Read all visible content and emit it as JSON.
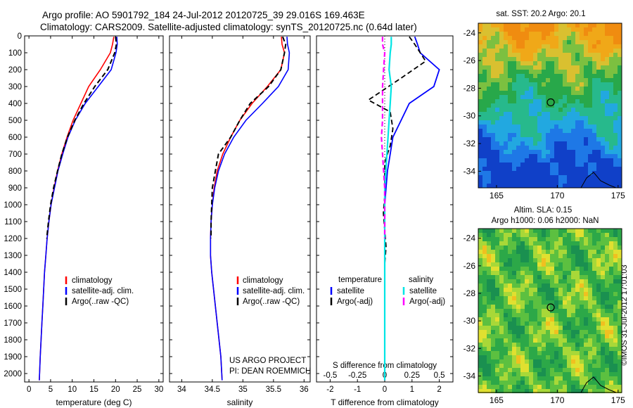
{
  "header": {
    "line1": "Argo profile: AO 5901792_184 24-Jul-2012 20120725_39 29.016S 169.463E",
    "line2": "Climatology: CARS2009. Satellite-adjusted climatology: synTS_20120725.nc (0.64d later)"
  },
  "colors": {
    "climatology": "#ff0000",
    "satellite": "#0000ff",
    "argo": "#000000",
    "salinity_satellite": "#00e5e5",
    "salinity_argo": "#ff00ff"
  },
  "chart_data": [
    {
      "type": "line",
      "id": "temperature",
      "xlabel": "temperature (deg C)",
      "xlim": [
        -1,
        31
      ],
      "ylim": [
        2050,
        0
      ],
      "xticks": [
        "0",
        "5",
        "10",
        "15",
        "20",
        "25",
        "30"
      ],
      "yticks": [
        "0",
        "100",
        "200",
        "300",
        "400",
        "500",
        "600",
        "700",
        "800",
        "900",
        "1000",
        "1100",
        "1200",
        "1300",
        "1400",
        "1500",
        "1600",
        "1700",
        "1800",
        "1900",
        "2000"
      ],
      "legend": [
        "climatology",
        "satellite-adj. clim.",
        "Argo(..raw -QC)"
      ],
      "series": [
        {
          "name": "climatology",
          "x": [
            19.6,
            19.3,
            18.8,
            16.5,
            13.8,
            12.0,
            10.2,
            8.8,
            7.6,
            6.6,
            5.8,
            5.1,
            4.6,
            4.2,
            3.9,
            3.6,
            3.4,
            3.2,
            3.0,
            2.8,
            2.6,
            2.4
          ],
          "y": [
            5,
            50,
            100,
            200,
            300,
            400,
            500,
            600,
            700,
            800,
            900,
            1000,
            1100,
            1200,
            1300,
            1400,
            1500,
            1600,
            1700,
            1800,
            1900,
            2040
          ]
        },
        {
          "name": "satellite-adj. clim.",
          "x": [
            20.3,
            20.4,
            20.1,
            19.0,
            16.0,
            13.0,
            10.7,
            9.0,
            7.8,
            6.7,
            5.9,
            5.1,
            4.6,
            4.2,
            3.9,
            3.6,
            3.4,
            3.2,
            3.0,
            2.8,
            2.6,
            2.4
          ],
          "y": [
            5,
            50,
            100,
            200,
            300,
            400,
            500,
            600,
            700,
            800,
            900,
            1000,
            1100,
            1200,
            1300,
            1400,
            1500,
            1600,
            1700,
            1800,
            1900,
            2040
          ]
        },
        {
          "name": "Argo(..raw -QC)",
          "x": [
            20.0,
            20.2,
            19.8,
            18.2,
            15.2,
            12.7,
            10.6,
            8.9,
            7.6,
            6.6,
            5.7,
            5.0,
            4.5,
            4.1
          ],
          "y": [
            5,
            50,
            100,
            200,
            300,
            400,
            500,
            600,
            700,
            800,
            900,
            1000,
            1100,
            1200
          ]
        }
      ]
    },
    {
      "type": "line",
      "id": "salinity",
      "xlabel": "salinity",
      "xlim": [
        33.8,
        36.1
      ],
      "ylim": [
        2050,
        0
      ],
      "xticks": [
        "34",
        "34.5",
        "35",
        "35.5",
        "36"
      ],
      "legend": [
        "climatology",
        "satellite-adj. clim.",
        "Argo(..raw -QC)"
      ],
      "credit": [
        "US ARGO PROJECT",
        "PI: DEAN ROEMMICH"
      ],
      "series": [
        {
          "name": "climatology",
          "x": [
            35.63,
            35.64,
            35.68,
            35.62,
            35.4,
            35.15,
            34.95,
            34.8,
            34.67,
            34.58,
            34.53,
            34.5,
            34.48,
            34.47,
            34.47,
            34.49,
            34.52,
            34.55,
            34.58,
            34.61,
            34.64,
            34.66
          ],
          "y": [
            5,
            50,
            100,
            200,
            300,
            400,
            500,
            600,
            700,
            800,
            900,
            1000,
            1100,
            1200,
            1300,
            1400,
            1500,
            1600,
            1700,
            1800,
            1900,
            2040
          ]
        },
        {
          "name": "satellite-adj. clim.",
          "x": [
            35.72,
            35.73,
            35.76,
            35.74,
            35.58,
            35.32,
            35.05,
            34.85,
            34.7,
            34.6,
            34.54,
            34.5,
            34.48,
            34.47,
            34.47,
            34.49,
            34.52,
            34.55,
            34.58,
            34.61,
            34.64,
            34.66
          ],
          "y": [
            5,
            50,
            100,
            200,
            300,
            400,
            500,
            600,
            700,
            800,
            900,
            1000,
            1100,
            1200,
            1300,
            1400,
            1500,
            1600,
            1700,
            1800,
            1900,
            2040
          ]
        },
        {
          "name": "Argo(..raw -QC)",
          "x": [
            35.65,
            35.7,
            35.68,
            35.62,
            35.42,
            35.12,
            34.95,
            34.8,
            34.6,
            34.55,
            34.5,
            34.49,
            34.48,
            34.48
          ],
          "y": [
            5,
            50,
            100,
            200,
            300,
            400,
            500,
            600,
            700,
            800,
            900,
            1000,
            1100,
            1200
          ]
        }
      ]
    },
    {
      "type": "line",
      "id": "difference",
      "xlabel": "T difference from climatology",
      "xlabel_top": "S difference from climatology",
      "xlim": [
        -2.5,
        2.5
      ],
      "ylim": [
        2050,
        0
      ],
      "xticks": [
        "-2",
        "-1",
        "0",
        "1",
        "2"
      ],
      "xticks_top": [
        "-0.5",
        "-0.25",
        "0",
        "0.25",
        "0.5"
      ],
      "legend_headers": [
        "temperature",
        "salinity"
      ],
      "legend": [
        "satellite",
        "Argo(-adj)",
        "satellite",
        "Argo(-adj)"
      ],
      "series": [
        {
          "name": "temperature satellite",
          "x": [
            1.1,
            1.2,
            1.3,
            2.0,
            1.8,
            0.9,
            0.6,
            0.3,
            0.2,
            0.1,
            0.05,
            0.0,
            0,
            0,
            0,
            0,
            0,
            0,
            0,
            0,
            0,
            0
          ],
          "y": [
            5,
            50,
            100,
            200,
            300,
            400,
            500,
            600,
            700,
            800,
            900,
            1000,
            1100,
            1200,
            1300,
            1400,
            1500,
            1600,
            1700,
            1800,
            1900,
            2040
          ]
        },
        {
          "name": "temperature Argo(-adj)",
          "x": [
            0.9,
            1.1,
            1.5,
            0.6,
            -0.6,
            0.2,
            0.3,
            0.2,
            0.0,
            0.0,
            0.0,
            -0.05,
            0.0,
            0.05,
            0.0
          ],
          "y": [
            5,
            50,
            150,
            250,
            380,
            450,
            550,
            650,
            750,
            850,
            950,
            1050,
            1150,
            1250,
            1350
          ]
        },
        {
          "name": "salinity satellite",
          "x": [
            0.06,
            0.06,
            0.05,
            0.04,
            0.06,
            0.05,
            0.04,
            0.03,
            0.02,
            0.01,
            0.0,
            0,
            0,
            0,
            0,
            0,
            0,
            0,
            0,
            0,
            0,
            0
          ],
          "y": [
            5,
            50,
            100,
            200,
            300,
            400,
            500,
            600,
            700,
            800,
            900,
            1000,
            1100,
            1200,
            1300,
            1400,
            1500,
            1600,
            1700,
            1800,
            1900,
            2040
          ]
        },
        {
          "name": "salinity Argo(-adj)",
          "x": [
            -0.02,
            -0.02,
            0.0,
            -0.01,
            -0.02,
            -0.02,
            -0.02,
            -0.03,
            -0.02,
            -0.01,
            0.0,
            0.0,
            0.0,
            0.0
          ],
          "y": [
            5,
            50,
            100,
            200,
            300,
            400,
            500,
            600,
            700,
            800,
            900,
            1000,
            1100,
            1200
          ]
        }
      ]
    },
    {
      "type": "heatmap",
      "id": "sst-map",
      "title": "sat. SST: 20.2 Argo: 20.1",
      "xlim": [
        163.5,
        175.3
      ],
      "ylim": [
        -35.2,
        -23.3
      ],
      "xticks": [
        "165",
        "170",
        "175"
      ],
      "yticks": [
        "-24",
        "-26",
        "-28",
        "-30",
        "-32",
        "-34"
      ],
      "argo_position": [
        169.46,
        -29.02
      ]
    },
    {
      "type": "heatmap",
      "id": "sla-map",
      "title": "Altim. SLA: 0.15",
      "subtitle": "Argo h1000: 0.06 h2000: NaN",
      "xlim": [
        163.5,
        175.3
      ],
      "ylim": [
        -35.2,
        -23.3
      ],
      "xticks": [
        "165",
        "170",
        "175"
      ],
      "yticks": [
        "-24",
        "-26",
        "-28",
        "-30",
        "-32",
        "-34"
      ],
      "argo_position": [
        169.46,
        -29.02
      ],
      "side_label": "©IMOS 31-Jul-2012 17:01:03"
    }
  ]
}
